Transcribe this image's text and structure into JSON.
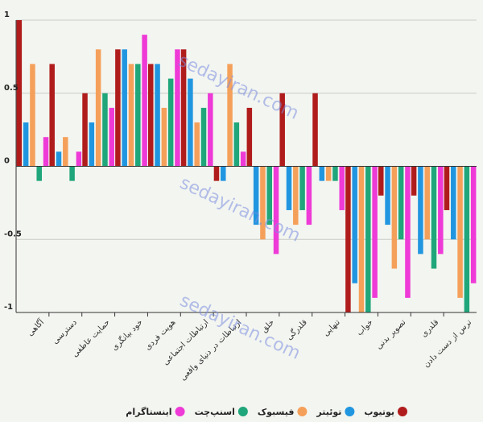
{
  "watermark": "sedayiran.com",
  "chart_data": {
    "type": "bar",
    "title": "",
    "xlabel": "",
    "ylabel": "",
    "ylim": [
      -1,
      1
    ],
    "yticks": [
      {
        "value": 1,
        "label": "1"
      },
      {
        "value": 0.5,
        "label": "0.5"
      },
      {
        "value": 0,
        "label": "0"
      },
      {
        "value": -0.5,
        "label": "-0.5"
      },
      {
        "value": -1,
        "label": "-1"
      }
    ],
    "grid": true,
    "legend_position": "bottom",
    "categories": [
      "آگاهی",
      "دسترسی",
      "حمایت عاطفی",
      "خود بیانگری",
      "هویت فردی",
      "ارتباطات اجتماعی",
      "ارتباطات در دنیای واقعی",
      "خلق",
      "قلدرگی",
      "تنهایی",
      "خواب",
      "تصویر بدنی",
      "قلدری",
      "ترس از دست دادن"
    ],
    "series": [
      {
        "name": "یوتیوب",
        "color": "#b01c1c",
        "values": [
          1.0,
          0.7,
          0.5,
          0.8,
          0.7,
          0.8,
          -0.1,
          0.4,
          0.5,
          0.5,
          -1.0,
          -0.2,
          -0.2,
          -0.3
        ]
      },
      {
        "name": "توئیتر",
        "color": "#2196e0",
        "values": [
          0.3,
          0.1,
          0.3,
          0.8,
          0.7,
          0.6,
          -0.1,
          -0.4,
          -0.3,
          -0.1,
          -0.8,
          -0.4,
          -0.6,
          -0.5
        ]
      },
      {
        "name": "فیسبوک",
        "color": "#f5a05a",
        "values": [
          0.7,
          0.2,
          0.8,
          0.7,
          0.4,
          0.3,
          0.7,
          -0.5,
          -0.4,
          -0.1,
          -1.0,
          -0.7,
          -0.5,
          -0.9
        ]
      },
      {
        "name": "اسنپ‌چت",
        "color": "#1fa67a",
        "values": [
          -0.1,
          -0.1,
          0.5,
          0.7,
          0.6,
          0.4,
          0.3,
          -0.4,
          -0.3,
          -0.1,
          -1.0,
          -0.5,
          -0.7,
          -1.0
        ]
      },
      {
        "name": "اینستاگرام",
        "color": "#ee3ad6",
        "values": [
          0.2,
          0.1,
          0.4,
          0.9,
          0.8,
          0.5,
          0.1,
          -0.6,
          -0.4,
          -0.3,
          -0.9,
          -0.9,
          -0.6,
          -0.8
        ]
      }
    ]
  }
}
